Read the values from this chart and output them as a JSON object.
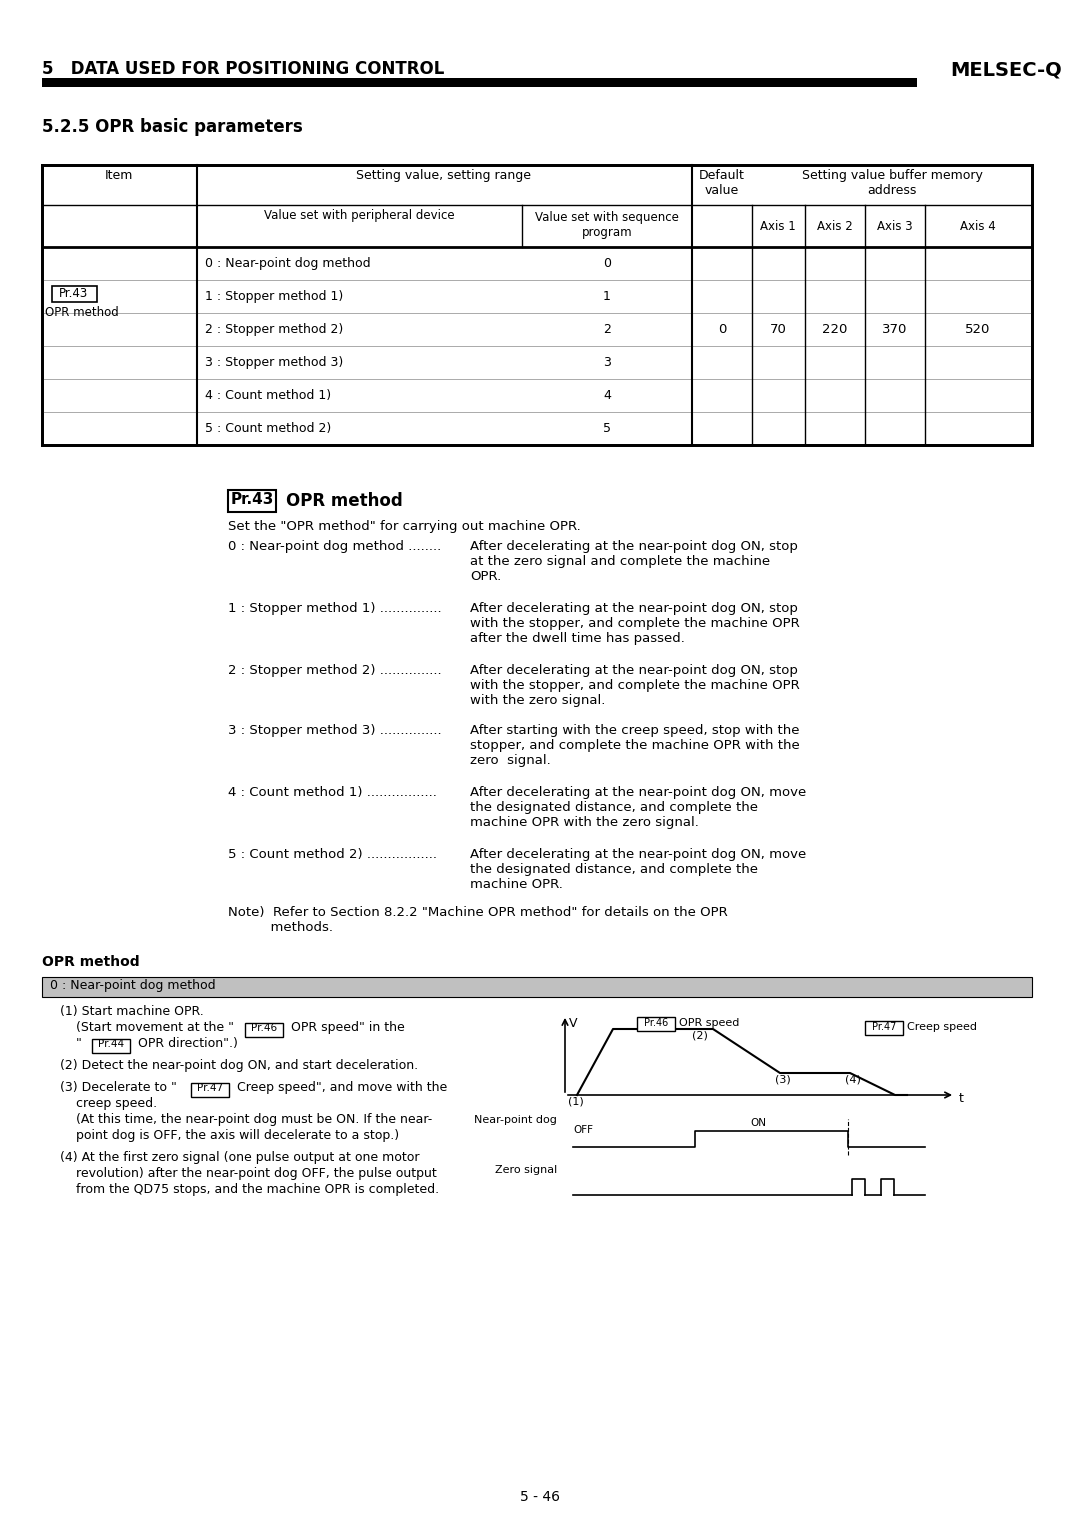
{
  "title_section": "5   DATA USED FOR POSITIONING CONTROL",
  "title_right": "MELSEC-Q",
  "subtitle": "5.2.5 OPR basic parameters",
  "table_headers": {
    "col1": "Item",
    "col2_main": "Setting value, setting range",
    "col2a": "Value set with peripheral device",
    "col2b": "Value set with sequence\nprogram",
    "col3": "Default\nvalue",
    "col4_main": "Setting value buffer memory\naddress",
    "col4a": "Axis 1",
    "col4b": "Axis 2",
    "col4c": "Axis 3",
    "col4d": "Axis 4"
  },
  "table_rows": [
    [
      "0 : Near-point dog method",
      "0"
    ],
    [
      "1 : Stopper method 1)",
      "1"
    ],
    [
      "2 : Stopper method 2)",
      "2"
    ],
    [
      "3 : Stopper method 3)",
      "3"
    ],
    [
      "4 : Count method 1)",
      "4"
    ],
    [
      "5 : Count method 2)",
      "5"
    ]
  ],
  "default": "0",
  "axis1": "70",
  "axis2": "220",
  "axis3": "370",
  "axis4": "520",
  "pr43_title": "OPR method",
  "pr43_label": "Pr.43",
  "description_intro": "Set the \"OPR method\" for carrying out machine OPR.",
  "methods": [
    {
      "label": "0 : Near-point dog method",
      "dots": "........",
      "description": "After decelerating at the near-point dog ON, stop\nat the zero signal and complete the machine\nOPR."
    },
    {
      "label": "1 : Stopper method 1)",
      "dots": "...............",
      "description": "After decelerating at the near-point dog ON, stop\nwith the stopper, and complete the machine OPR\nafter the dwell time has passed."
    },
    {
      "label": "2 : Stopper method 2)",
      "dots": "...............",
      "description": "After decelerating at the near-point dog ON, stop\nwith the stopper, and complete the machine OPR\nwith the zero signal."
    },
    {
      "label": "3 : Stopper method 3)",
      "dots": "...............",
      "description": "After starting with the creep speed, stop with the\nstopper, and complete the machine OPR with the\nzero  signal."
    },
    {
      "label": "4 : Count method 1)",
      "dots": ".................",
      "description": "After decelerating at the near-point dog ON, move\nthe designated distance, and complete the\nmachine OPR with the zero signal."
    },
    {
      "label": "5 : Count method 2)",
      "dots": ".................",
      "description": "After decelerating at the near-point dog ON, move\nthe designated distance, and complete the\nmachine OPR."
    }
  ],
  "note": "Note)  Refer to Section 8.2.2 \"Machine OPR method\" for details on the OPR\n          methods.",
  "opr_method_section": "OPR method",
  "opr_subsection": "0 : Near-point dog method",
  "page_number": "5 - 46",
  "bg_color": "#ffffff",
  "subsection_bg": "#c0c0c0"
}
